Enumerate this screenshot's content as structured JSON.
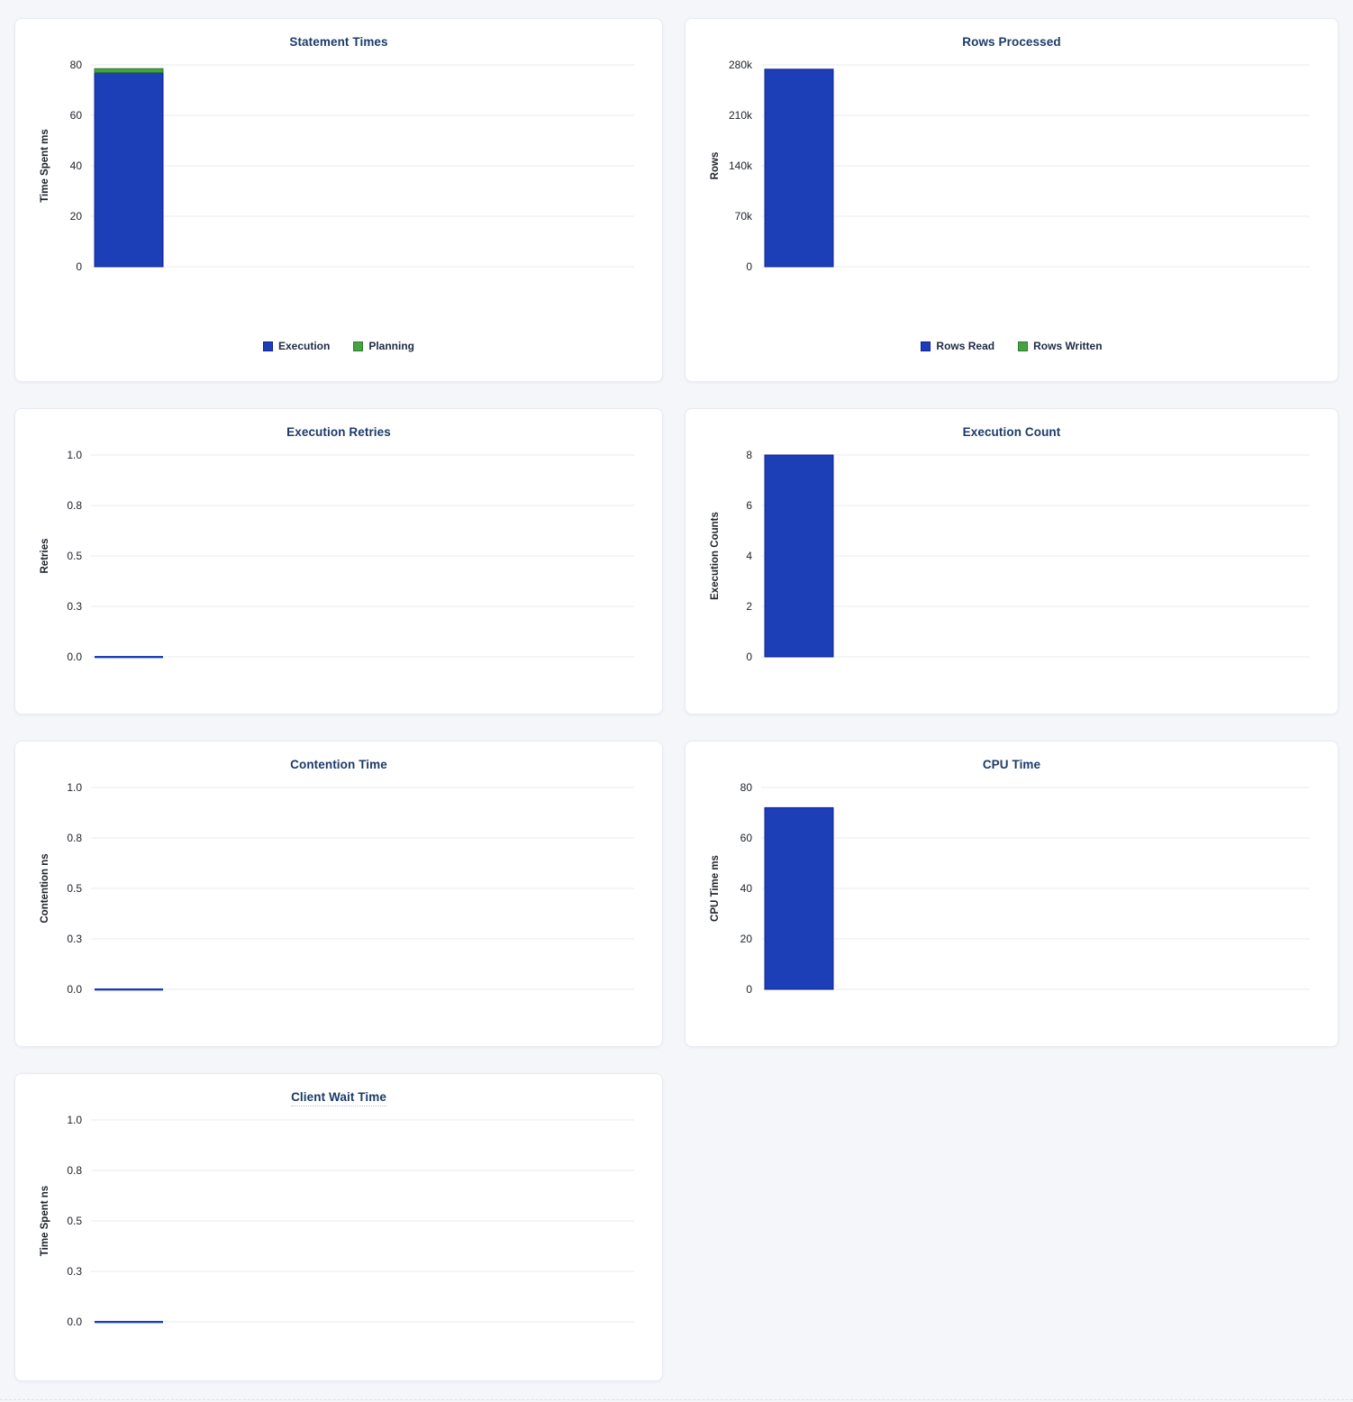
{
  "page": {
    "background": "#f4f6fa"
  },
  "colors": {
    "bar_blue": "#1c3fb8",
    "bar_blue_border": "#111f97",
    "bar_green": "#47a342",
    "bar_green_border": "#2c7d2f",
    "title": "#1c3a69",
    "gridline": "#e9ebef",
    "tick_text": "#20242b"
  },
  "chart_data": [
    {
      "type": "bar",
      "title": "Statement Times",
      "ylabel": "Time Spent ms",
      "ylim": [
        0,
        80
      ],
      "yticks": [
        {
          "v": 0,
          "label": "0"
        },
        {
          "v": 20,
          "label": "20"
        },
        {
          "v": 40,
          "label": "40"
        },
        {
          "v": 60,
          "label": "60"
        },
        {
          "v": 80,
          "label": "80"
        }
      ],
      "stacked": true,
      "grid": true,
      "series": [
        {
          "name": "Execution",
          "value": 77,
          "color": "#1c3fb8",
          "border": "#111f97"
        },
        {
          "name": "Planning",
          "value": 1.5,
          "color": "#47a342",
          "border": "#2c7d2f"
        }
      ],
      "legend": [
        {
          "label": "Execution",
          "color": "#1c3fb8",
          "border": "#111f97"
        },
        {
          "label": "Planning",
          "color": "#47a342",
          "border": "#2c7d2f"
        }
      ],
      "legend_position": "bottom",
      "title_tooltip": false
    },
    {
      "type": "bar",
      "title": "Rows Processed",
      "ylabel": "Rows",
      "ylim": [
        0,
        280000
      ],
      "yticks": [
        {
          "v": 0,
          "label": "0"
        },
        {
          "v": 70000,
          "label": "70k"
        },
        {
          "v": 140000,
          "label": "140k"
        },
        {
          "v": 210000,
          "label": "210k"
        },
        {
          "v": 280000,
          "label": "280k"
        }
      ],
      "stacked": true,
      "grid": true,
      "series": [
        {
          "name": "Rows Read",
          "value": 274000,
          "color": "#1c3fb8",
          "border": "#111f97"
        },
        {
          "name": "Rows Written",
          "value": 0,
          "color": "#47a342",
          "border": "#2c7d2f"
        }
      ],
      "legend": [
        {
          "label": "Rows Read",
          "color": "#1c3fb8",
          "border": "#111f97"
        },
        {
          "label": "Rows Written",
          "color": "#47a342",
          "border": "#2c7d2f"
        }
      ],
      "legend_position": "bottom",
      "title_tooltip": false
    },
    {
      "type": "bar",
      "title": "Execution Retries",
      "ylabel": "Retries",
      "ylim": [
        0,
        1
      ],
      "yticks": [
        {
          "v": 0,
          "label": "0.0"
        },
        {
          "v": 0.25,
          "label": "0.3"
        },
        {
          "v": 0.5,
          "label": "0.5"
        },
        {
          "v": 0.75,
          "label": "0.8"
        },
        {
          "v": 1,
          "label": "1.0"
        }
      ],
      "stacked": false,
      "grid": true,
      "series": [
        {
          "name": "Retries",
          "value": 0,
          "color": "#1c3fb8",
          "border": "#111f97"
        }
      ],
      "title_tooltip": false
    },
    {
      "type": "bar",
      "title": "Execution Count",
      "ylabel": "Execution Counts",
      "ylim": [
        0,
        8
      ],
      "yticks": [
        {
          "v": 0,
          "label": "0"
        },
        {
          "v": 2,
          "label": "2"
        },
        {
          "v": 4,
          "label": "4"
        },
        {
          "v": 6,
          "label": "6"
        },
        {
          "v": 8,
          "label": "8"
        }
      ],
      "stacked": false,
      "grid": true,
      "series": [
        {
          "name": "Execution Count",
          "value": 8,
          "color": "#1c3fb8",
          "border": "#111f97"
        }
      ],
      "title_tooltip": false
    },
    {
      "type": "bar",
      "title": "Contention Time",
      "ylabel": "Contention ns",
      "ylim": [
        0,
        1
      ],
      "yticks": [
        {
          "v": 0,
          "label": "0.0"
        },
        {
          "v": 0.25,
          "label": "0.3"
        },
        {
          "v": 0.5,
          "label": "0.5"
        },
        {
          "v": 0.75,
          "label": "0.8"
        },
        {
          "v": 1,
          "label": "1.0"
        }
      ],
      "stacked": false,
      "grid": true,
      "series": [
        {
          "name": "Contention",
          "value": 0,
          "color": "#1c3fb8",
          "border": "#111f97"
        }
      ],
      "title_tooltip": false
    },
    {
      "type": "bar",
      "title": "CPU Time",
      "ylabel": "CPU Time ms",
      "ylim": [
        0,
        80
      ],
      "yticks": [
        {
          "v": 0,
          "label": "0"
        },
        {
          "v": 20,
          "label": "20"
        },
        {
          "v": 40,
          "label": "40"
        },
        {
          "v": 60,
          "label": "60"
        },
        {
          "v": 80,
          "label": "80"
        }
      ],
      "stacked": false,
      "grid": true,
      "series": [
        {
          "name": "CPU Time",
          "value": 72,
          "color": "#1c3fb8",
          "border": "#111f97"
        }
      ],
      "title_tooltip": false
    },
    {
      "type": "bar",
      "title": "Client Wait Time",
      "ylabel": "Time Spent ns",
      "ylim": [
        0,
        1
      ],
      "yticks": [
        {
          "v": 0,
          "label": "0.0"
        },
        {
          "v": 0.25,
          "label": "0.3"
        },
        {
          "v": 0.5,
          "label": "0.5"
        },
        {
          "v": 0.75,
          "label": "0.8"
        },
        {
          "v": 1,
          "label": "1.0"
        }
      ],
      "stacked": false,
      "grid": true,
      "series": [
        {
          "name": "Client Wait",
          "value": 0,
          "color": "#1c3fb8",
          "border": "#111f97"
        }
      ],
      "title_tooltip": true
    }
  ]
}
